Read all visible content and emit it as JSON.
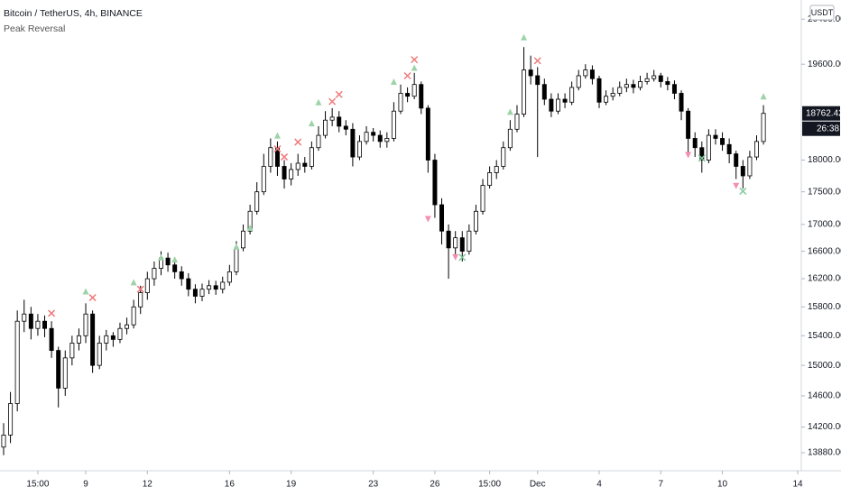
{
  "header": {
    "title": "Bitcoin / TetherUS, 4h, BINANCE",
    "indicator": "Peak Reversal",
    "currency_button": "USDT"
  },
  "chart_data": {
    "type": "candlestick",
    "log_scale": true,
    "grid": false,
    "up_color": "#ffffff",
    "down_color": "#000000",
    "wick_color": "#000000",
    "categories": [
      null,
      null,
      null,
      null,
      null,
      "15:00",
      null,
      null,
      null,
      null,
      null,
      null,
      "9",
      null,
      null,
      null,
      null,
      null,
      null,
      null,
      null,
      "12",
      null,
      null,
      null,
      null,
      null,
      null,
      null,
      null,
      null,
      null,
      null,
      "16",
      null,
      null,
      null,
      null,
      null,
      null,
      null,
      null,
      "19",
      null,
      null,
      null,
      null,
      null,
      null,
      null,
      null,
      null,
      null,
      null,
      "23",
      null,
      null,
      null,
      null,
      null,
      null,
      null,
      null,
      "26",
      null,
      null,
      null,
      null,
      null,
      null,
      null,
      "15:00",
      null,
      null,
      null,
      null,
      null,
      null,
      "Dec",
      null,
      null,
      null,
      null,
      null,
      null,
      null,
      null,
      "4",
      null,
      null,
      null,
      null,
      null,
      null,
      null,
      null,
      "7",
      null,
      null,
      null,
      null,
      null,
      null,
      null,
      null,
      "10",
      null,
      null,
      null,
      null,
      null,
      null,
      null,
      null,
      null,
      null,
      "14"
    ],
    "open": [
      13950,
      14100,
      14500,
      15600,
      15700,
      15500,
      15600,
      15500,
      15200,
      14700,
      15100,
      15300,
      15400,
      15700,
      15000,
      15300,
      15400,
      15350,
      15500,
      15550,
      15800,
      16000,
      16200,
      16350,
      16500,
      16400,
      16300,
      16200,
      16050,
      15950,
      16050,
      16100,
      16050,
      16150,
      16300,
      16650,
      16900,
      17200,
      17500,
      17900,
      18200,
      17900,
      17700,
      17850,
      17950,
      17900,
      18200,
      18400,
      18650,
      18700,
      18550,
      18500,
      18050,
      18300,
      18450,
      18400,
      18300,
      18350,
      18800,
      19100,
      19050,
      19250,
      18850,
      18000,
      17300,
      16900,
      16650,
      16800,
      16600,
      16900,
      17200,
      17600,
      17800,
      17900,
      18200,
      18500,
      18750,
      19500,
      19400,
      19250,
      19000,
      18800,
      19000,
      18950,
      19200,
      19400,
      19500,
      19350,
      18950,
      19050,
      19100,
      19200,
      19250,
      19200,
      19300,
      19350,
      19400,
      19300,
      19250,
      19100,
      18800,
      18350,
      18200,
      18000,
      18400,
      18350,
      18250,
      18100,
      17900,
      17750,
      18050,
      18300,
      null,
      null,
      null,
      null,
      null
    ],
    "high": [
      14250,
      14650,
      15750,
      15900,
      15800,
      15700,
      15680,
      15600,
      15250,
      15200,
      15400,
      15500,
      15850,
      15750,
      15400,
      15480,
      15450,
      15580,
      15650,
      15900,
      16100,
      16300,
      16450,
      16600,
      16580,
      16480,
      16380,
      16280,
      16120,
      16130,
      16180,
      16170,
      16230,
      16400,
      16750,
      17000,
      17300,
      17650,
      18100,
      18350,
      18300,
      18000,
      17950,
      18100,
      18050,
      18300,
      18550,
      18800,
      18850,
      18800,
      18650,
      18600,
      18400,
      18550,
      18520,
      18480,
      18450,
      18950,
      19250,
      19200,
      19450,
      19300,
      18900,
      18100,
      17400,
      17000,
      16900,
      16900,
      17000,
      17300,
      17700,
      17900,
      18000,
      18300,
      18650,
      18900,
      19900,
      19750,
      19550,
      19350,
      19100,
      19100,
      19100,
      19300,
      19500,
      19600,
      19580,
      19400,
      19150,
      19200,
      19300,
      19350,
      19330,
      19400,
      19450,
      19500,
      19450,
      19380,
      19320,
      19150,
      18850,
      18450,
      18300,
      18500,
      18500,
      18450,
      18350,
      18150,
      18000,
      18150,
      18400,
      18900,
      null,
      null,
      null,
      null,
      null
    ],
    "low": [
      13850,
      14000,
      14400,
      15450,
      15350,
      15400,
      15380,
      15100,
      14450,
      14600,
      15000,
      15200,
      15300,
      14900,
      14950,
      15200,
      15250,
      15300,
      15420,
      15500,
      15700,
      15900,
      16100,
      16250,
      16300,
      16200,
      16100,
      15950,
      15850,
      15880,
      15980,
      15970,
      15990,
      16100,
      16250,
      16600,
      16850,
      17150,
      17450,
      17800,
      17750,
      17550,
      17600,
      17750,
      17800,
      17850,
      18150,
      18350,
      18550,
      18450,
      18400,
      17900,
      18000,
      18250,
      18300,
      18200,
      18200,
      18300,
      18750,
      18950,
      19000,
      18750,
      17800,
      17100,
      16700,
      16200,
      16500,
      16450,
      16550,
      16850,
      17150,
      17550,
      17700,
      17850,
      18150,
      18450,
      18700,
      19250,
      18050,
      18900,
      18700,
      18750,
      18850,
      18900,
      19150,
      19350,
      19250,
      18850,
      18900,
      18980,
      19050,
      19120,
      19100,
      19150,
      19250,
      19300,
      19200,
      19150,
      19000,
      18650,
      18100,
      18050,
      17800,
      17950,
      18250,
      18150,
      17950,
      17700,
      17550,
      17700,
      18000,
      18250,
      null,
      null,
      null,
      null,
      null
    ],
    "close": [
      14100,
      14500,
      15600,
      15700,
      15500,
      15600,
      15500,
      15200,
      14700,
      15100,
      15300,
      15400,
      15700,
      15000,
      15300,
      15400,
      15350,
      15500,
      15550,
      15800,
      16000,
      16200,
      16350,
      16500,
      16400,
      16300,
      16200,
      16050,
      15950,
      16050,
      16100,
      16050,
      16150,
      16300,
      16650,
      16900,
      17200,
      17500,
      17900,
      18200,
      17900,
      17700,
      17850,
      17950,
      17900,
      18200,
      18400,
      18650,
      18700,
      18550,
      18500,
      18050,
      18300,
      18450,
      18400,
      18300,
      18350,
      18800,
      19100,
      19050,
      19250,
      18850,
      18000,
      17300,
      16900,
      16650,
      16800,
      16600,
      16900,
      17200,
      17600,
      17800,
      17900,
      18200,
      18500,
      18750,
      19500,
      19400,
      19250,
      19000,
      18800,
      19000,
      18950,
      19200,
      19400,
      19500,
      19350,
      18950,
      19050,
      19100,
      19200,
      19250,
      19200,
      19300,
      19350,
      19400,
      19300,
      19250,
      19100,
      18800,
      18350,
      18200,
      18000,
      18400,
      18350,
      18250,
      18100,
      17900,
      17750,
      18050,
      18300,
      18762.42,
      null,
      null,
      null,
      null,
      null
    ],
    "countdown": "26:38",
    "markers": [
      {
        "shape": "triangle-up",
        "color": "#9ed3a8",
        "x": [
          12,
          19,
          23,
          25,
          34,
          36,
          40,
          45,
          46,
          57,
          60,
          74,
          76,
          111
        ],
        "values": [
          16020,
          16150,
          16510,
          16480,
          16670,
          16950,
          18400,
          18600,
          18950,
          19300,
          19540,
          18790,
          20075,
          19050
        ]
      },
      {
        "shape": "cross",
        "color": "#ef7b7b",
        "x": [
          7,
          13,
          20,
          40,
          41,
          43,
          48,
          49,
          59,
          60,
          78
        ],
        "values": [
          15710,
          15930,
          16050,
          18180,
          18050,
          18290,
          18960,
          19080,
          19400,
          19680,
          19660
        ]
      },
      {
        "shape": "triangle-down",
        "color": "#f48fb1",
        "x": [
          62,
          66,
          100,
          107
        ],
        "values": [
          17080,
          16510,
          18080,
          17590
        ]
      },
      {
        "shape": "cross",
        "color": "#7fc79a",
        "x": [
          67,
          102,
          108
        ],
        "values": [
          16510,
          18030,
          17510
        ]
      }
    ],
    "ylim": [
      13660,
      20750
    ],
    "yticks": [
      {
        "value": 13880,
        "label": "13880.00"
      },
      {
        "value": 14200,
        "label": "14200.00"
      },
      {
        "value": 14600,
        "label": "14600.00"
      },
      {
        "value": 15000,
        "label": "15000.00"
      },
      {
        "value": 15400,
        "label": "15400.00"
      },
      {
        "value": 15800,
        "label": "15800.00"
      },
      {
        "value": 16200,
        "label": "16200.00"
      },
      {
        "value": 16600,
        "label": "16600.00"
      },
      {
        "value": 17000,
        "label": "17000.00"
      },
      {
        "value": 17500,
        "label": "17500.00"
      },
      {
        "value": 18000,
        "label": "18000.00"
      },
      {
        "value": 19600,
        "label": "19600.00"
      },
      {
        "value": 20400,
        "label": "20400.00"
      }
    ]
  }
}
